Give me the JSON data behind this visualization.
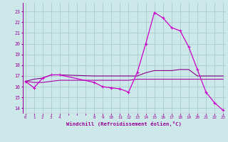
{
  "xlabel": "Windchill (Refroidissement éolien,°C)",
  "background_color": "#cce8e8",
  "grid_color": "#aacccc",
  "xtick_labels": [
    "0",
    "1",
    "2",
    "3",
    "4",
    "",
    "",
    "",
    "8",
    "9",
    "10",
    "11",
    "12",
    "13",
    "14",
    "15",
    "16",
    "17",
    "18",
    "19",
    "20",
    "21",
    "22",
    "23"
  ],
  "xtick_positions": [
    0,
    1,
    2,
    3,
    4,
    5,
    6,
    7,
    8,
    9,
    10,
    11,
    12,
    13,
    14,
    15,
    16,
    17,
    18,
    19,
    20,
    21,
    22,
    23
  ],
  "yticks": [
    14,
    15,
    16,
    17,
    18,
    19,
    20,
    21,
    22,
    23
  ],
  "ylim": [
    13.5,
    23.8
  ],
  "xlim": [
    -0.3,
    23.3
  ],
  "series": [
    {
      "x": [
        0,
        1,
        2,
        3,
        4,
        8,
        9,
        10,
        11,
        12,
        13,
        14,
        15,
        16,
        17,
        18,
        19,
        20,
        21,
        22,
        23
      ],
      "y": [
        16.5,
        15.9,
        16.8,
        17.1,
        17.1,
        16.4,
        16.0,
        15.9,
        15.8,
        15.5,
        17.3,
        20.0,
        22.9,
        22.4,
        21.5,
        21.2,
        19.7,
        17.6,
        15.5,
        14.5,
        13.8
      ],
      "color": "#cc00cc",
      "linewidth": 0.9,
      "marker": "+",
      "markersize": 3.5
    },
    {
      "x": [
        0,
        1,
        2,
        3,
        4,
        8,
        9,
        10,
        11,
        12,
        13,
        14,
        15,
        16,
        17,
        18,
        19,
        20,
        21,
        22,
        23
      ],
      "y": [
        16.5,
        16.7,
        16.8,
        17.1,
        17.1,
        17.0,
        17.0,
        17.0,
        17.0,
        17.0,
        17.0,
        17.3,
        17.5,
        17.5,
        17.5,
        17.6,
        17.6,
        17.0,
        17.0,
        17.0,
        17.0
      ],
      "color": "#880088",
      "linewidth": 0.8,
      "marker": null,
      "markersize": 0
    },
    {
      "x": [
        0,
        1,
        2,
        3,
        4,
        8,
        9,
        10,
        11,
        12,
        13,
        14,
        15,
        16,
        17,
        18,
        19,
        20,
        21,
        22,
        23
      ],
      "y": [
        16.5,
        16.4,
        16.4,
        16.5,
        16.6,
        16.6,
        16.6,
        16.6,
        16.6,
        16.6,
        16.7,
        16.7,
        16.7,
        16.7,
        16.7,
        16.7,
        16.7,
        16.7,
        16.7,
        16.7,
        16.7
      ],
      "color": "#aa00aa",
      "linewidth": 0.8,
      "marker": null,
      "markersize": 0
    }
  ]
}
